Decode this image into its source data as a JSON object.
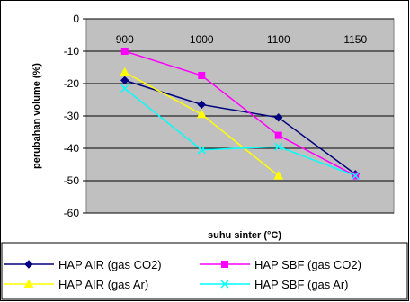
{
  "chart_data": {
    "type": "line",
    "categories": [
      "900",
      "1000",
      "1100",
      "1150"
    ],
    "xlabel": "suhu sinter (°C)",
    "ylabel": "perubahan volume (%)",
    "ylim": [
      -60,
      0
    ],
    "yticks": [
      0,
      -10,
      -20,
      -30,
      -40,
      -50,
      -60
    ],
    "grid": "horizontal",
    "legend_position": "bottom",
    "series": [
      {
        "name": "HAP  AIR (gas CO2)",
        "color": "#000080",
        "marker": "diamond",
        "values": [
          -19,
          -26.5,
          -30.5,
          -48
        ]
      },
      {
        "name": "HAP SBF (gas CO2)",
        "color": "#ff00ff",
        "marker": "square",
        "values": [
          -10,
          -17.5,
          -36,
          -48.5
        ]
      },
      {
        "name": "HAP AIR (gas Ar)",
        "color": "#ffff00",
        "marker": "triangle",
        "values": [
          -16.5,
          -29.5,
          -48.5,
          null
        ]
      },
      {
        "name": "HAP SBF (gas Ar)",
        "color": "#00ffff",
        "marker": "x",
        "values": [
          -21.5,
          -40.5,
          -39.5,
          -48.5
        ]
      }
    ]
  }
}
